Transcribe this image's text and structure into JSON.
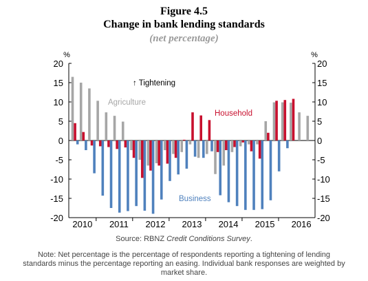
{
  "figure": {
    "number": "Figure 4.5",
    "title": "Change in bank lending standards",
    "subtitle": "(net percentage)"
  },
  "source": {
    "prefix": "Source: RBNZ ",
    "italic": "Credit Conditions Survey",
    "suffix": "."
  },
  "note": "Note: Net percentage is the percentage of respondents reporting a tightening of lending standards minus the percentage reporting an easing. Individual bank responses are weighted by market share.",
  "chart_data": {
    "type": "bar",
    "ylabel_left": "%",
    "ylabel_right": "%",
    "ylim": [
      -20,
      20
    ],
    "yticks": [
      20,
      15,
      10,
      5,
      0,
      -5,
      -10,
      -15,
      -20
    ],
    "year_labels": [
      "2010",
      "2011",
      "2012",
      "2013",
      "2014",
      "2015",
      "2016"
    ],
    "categories": [
      "2009Q4",
      "2010Q1",
      "2010Q2",
      "2010Q3",
      "2010Q4",
      "2011Q1",
      "2011Q2",
      "2011Q3",
      "2011Q4",
      "2012Q1",
      "2012Q2",
      "2012Q3",
      "2012Q4",
      "2013Q1",
      "2013Q2",
      "2013Q3",
      "2013Q4",
      "2014Q1",
      "2014Q2",
      "2014Q3",
      "2014Q4",
      "2015Q1",
      "2015Q2",
      "2015Q3",
      "2015Q4",
      "2016Q1",
      "2016Q2",
      "2016Q3",
      "2016Q4"
    ],
    "annotation": "↑ Tightening",
    "series": [
      {
        "name": "Agriculture",
        "color": "#a6a6a6",
        "values": [
          16.5,
          15,
          13.5,
          10.3,
          7.3,
          6.4,
          4.9,
          -2.5,
          -5,
          -6.5,
          -5.9,
          -2.5,
          -3.5,
          -3,
          -1,
          -4.5,
          -3.5,
          -8.7,
          -6.5,
          -3,
          -1.5,
          -1,
          -1,
          5,
          9.9,
          9.9,
          9.8,
          7.3,
          6.4
        ]
      },
      {
        "name": "Household",
        "color": "#c8102e",
        "values": [
          4.5,
          2.2,
          -1.3,
          -1.5,
          -1.7,
          -2.2,
          -1.8,
          -4.5,
          -9.7,
          -7.8,
          -6.5,
          -6,
          -4.5,
          0.2,
          7.3,
          6.5,
          5.3,
          -3,
          -2.5,
          -1.7,
          -0.5,
          -2.8,
          -4.7,
          2,
          10.3,
          10.5,
          10.8,
          0,
          0
        ]
      },
      {
        "name": "Business",
        "color": "#4f81bd",
        "values": [
          -1,
          -2.5,
          -8.5,
          -14.3,
          -17.5,
          -18.7,
          -18.3,
          -17,
          -18.2,
          -19,
          -15.3,
          -10.5,
          -8.8,
          -7.3,
          -4.2,
          -4.5,
          -2.8,
          -14.2,
          -16,
          -17,
          -18,
          -18,
          -17.8,
          -15.5,
          -8,
          -2,
          0,
          0,
          0
        ]
      }
    ]
  }
}
